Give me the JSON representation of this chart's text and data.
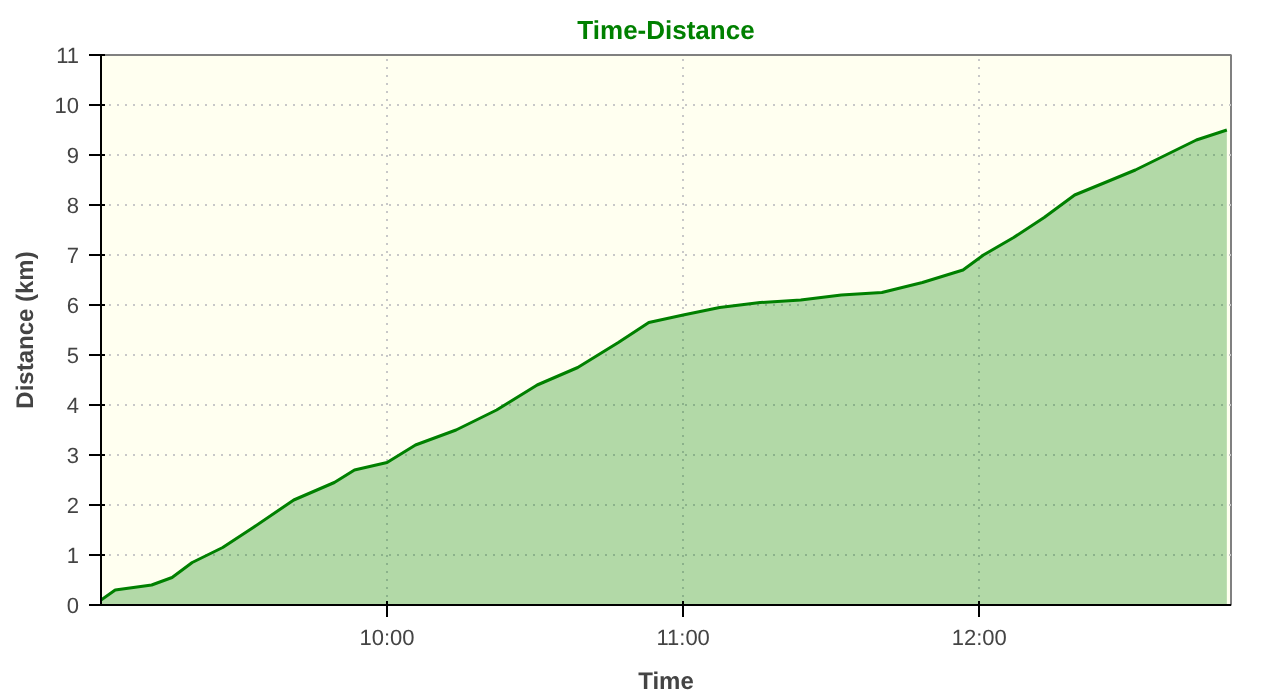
{
  "chart_data": {
    "type": "area",
    "title": "Time-Distance",
    "xlabel": "Time",
    "ylabel": "Distance (km)",
    "x": [
      9.034,
      9.082,
      9.205,
      9.274,
      9.342,
      9.445,
      9.548,
      9.685,
      9.822,
      9.89,
      10.0,
      10.096,
      10.233,
      10.37,
      10.507,
      10.644,
      10.781,
      10.884,
      11.0,
      11.123,
      11.26,
      11.397,
      11.534,
      11.671,
      11.808,
      11.945,
      12.014,
      12.116,
      12.219,
      12.322,
      12.425,
      12.527,
      12.63,
      12.733,
      12.836
    ],
    "series": [
      {
        "color": "#008000",
        "values": [
          0.1,
          0.3,
          0.4,
          0.55,
          0.85,
          1.15,
          1.55,
          2.1,
          2.45,
          2.7,
          2.85,
          3.2,
          3.5,
          3.9,
          4.4,
          4.75,
          5.25,
          5.65,
          5.8,
          5.95,
          6.05,
          6.1,
          6.2,
          6.25,
          6.45,
          6.7,
          7.0,
          7.35,
          7.75,
          8.2,
          8.45,
          8.7,
          9.0,
          9.3,
          9.5
        ]
      }
    ],
    "xlim": [
      9.034,
      12.85
    ],
    "xticks": [
      {
        "value": 10,
        "label": "10:00"
      },
      {
        "value": 11,
        "label": "11:00"
      },
      {
        "value": 12,
        "label": "12:00"
      }
    ],
    "ylim": [
      0,
      11
    ],
    "yticks": [
      0,
      1,
      2,
      3,
      4,
      5,
      6,
      7,
      8,
      9,
      10,
      11
    ],
    "grid": true
  }
}
